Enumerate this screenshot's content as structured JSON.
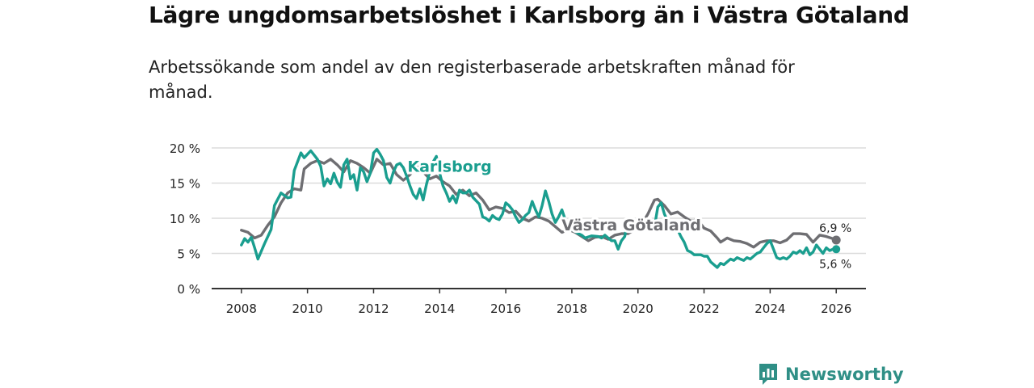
{
  "title": "Lägre ungdomsarbetslöshet i Karlsborg än i Västra Götaland",
  "subtitle": "Arbetssökande som andel av den registerbaserade arbetskraften månad för månad.",
  "brand": {
    "name": "Newsworthy"
  },
  "colors": {
    "karlsborg": "#1a9e8f",
    "vg": "#6e6e72",
    "grid": "#dcdcdc",
    "axis": "#333333"
  },
  "chart_data": {
    "type": "line",
    "title": "Lägre ungdomsarbetslöshet i Karlsborg än i Västra Götaland",
    "xlabel": "",
    "ylabel": "",
    "xlim": [
      2007.1,
      2026.9
    ],
    "ylim": [
      0,
      20
    ],
    "x_ticks": [
      2008,
      2010,
      2012,
      2014,
      2016,
      2018,
      2020,
      2022,
      2024,
      2026
    ],
    "x_tick_labels": [
      "2008",
      "2010",
      "2012",
      "2014",
      "2016",
      "2018",
      "2020",
      "2022",
      "2024",
      "2026"
    ],
    "y_ticks": [
      0,
      5,
      10,
      15,
      20
    ],
    "y_tick_labels": [
      "0 %",
      "5 %",
      "10 %",
      "15 %",
      "20 %"
    ],
    "grid": true,
    "series": [
      {
        "name": "Västra Götaland",
        "color": "#6e6e72",
        "end_label": "6,9 %",
        "points": [
          [
            2008.0,
            8.3
          ],
          [
            2008.2,
            8.0
          ],
          [
            2008.4,
            7.2
          ],
          [
            2008.6,
            7.6
          ],
          [
            2008.8,
            9.0
          ],
          [
            2009.0,
            10.2
          ],
          [
            2009.2,
            12.2
          ],
          [
            2009.4,
            13.6
          ],
          [
            2009.6,
            14.2
          ],
          [
            2009.8,
            14.0
          ],
          [
            2009.9,
            17.0
          ],
          [
            2010.1,
            17.8
          ],
          [
            2010.3,
            18.2
          ],
          [
            2010.5,
            17.8
          ],
          [
            2010.7,
            18.4
          ],
          [
            2010.9,
            17.6
          ],
          [
            2011.1,
            16.6
          ],
          [
            2011.3,
            18.2
          ],
          [
            2011.5,
            17.8
          ],
          [
            2011.7,
            17.2
          ],
          [
            2011.9,
            16.4
          ],
          [
            2012.1,
            18.4
          ],
          [
            2012.3,
            17.6
          ],
          [
            2012.5,
            17.8
          ],
          [
            2012.7,
            16.2
          ],
          [
            2012.9,
            15.4
          ],
          [
            2013.1,
            16.2
          ],
          [
            2013.3,
            17.4
          ],
          [
            2013.5,
            16.6
          ],
          [
            2013.7,
            15.6
          ],
          [
            2013.9,
            16.0
          ],
          [
            2014.1,
            15.2
          ],
          [
            2014.3,
            14.6
          ],
          [
            2014.5,
            13.4
          ],
          [
            2014.7,
            14.0
          ],
          [
            2014.9,
            13.2
          ],
          [
            2015.1,
            13.6
          ],
          [
            2015.3,
            12.6
          ],
          [
            2015.5,
            11.2
          ],
          [
            2015.7,
            11.6
          ],
          [
            2015.9,
            11.4
          ],
          [
            2016.1,
            10.8
          ],
          [
            2016.3,
            11.0
          ],
          [
            2016.5,
            10.0
          ],
          [
            2016.7,
            9.6
          ],
          [
            2016.9,
            10.2
          ],
          [
            2017.1,
            10.0
          ],
          [
            2017.3,
            9.6
          ],
          [
            2017.5,
            8.8
          ],
          [
            2017.7,
            8.0
          ],
          [
            2017.9,
            8.4
          ],
          [
            2018.1,
            8.0
          ],
          [
            2018.3,
            7.4
          ],
          [
            2018.5,
            6.8
          ],
          [
            2018.7,
            7.3
          ],
          [
            2018.9,
            7.4
          ],
          [
            2019.1,
            7.0
          ],
          [
            2019.3,
            7.6
          ],
          [
            2019.5,
            7.8
          ],
          [
            2019.7,
            7.8
          ],
          [
            2019.9,
            8.4
          ],
          [
            2020.1,
            9.0
          ],
          [
            2020.3,
            10.6
          ],
          [
            2020.5,
            12.6
          ],
          [
            2020.6,
            12.7
          ],
          [
            2020.8,
            11.8
          ],
          [
            2021.0,
            10.6
          ],
          [
            2021.2,
            10.9
          ],
          [
            2021.4,
            10.2
          ],
          [
            2021.6,
            9.6
          ],
          [
            2021.8,
            9.8
          ],
          [
            2022.0,
            8.6
          ],
          [
            2022.2,
            8.2
          ],
          [
            2022.4,
            7.2
          ],
          [
            2022.5,
            6.6
          ],
          [
            2022.7,
            7.2
          ],
          [
            2022.9,
            6.8
          ],
          [
            2023.1,
            6.7
          ],
          [
            2023.3,
            6.4
          ],
          [
            2023.5,
            5.9
          ],
          [
            2023.7,
            6.6
          ],
          [
            2023.9,
            6.8
          ],
          [
            2024.1,
            6.8
          ],
          [
            2024.3,
            6.5
          ],
          [
            2024.5,
            6.9
          ],
          [
            2024.7,
            7.8
          ],
          [
            2024.9,
            7.8
          ],
          [
            2025.1,
            7.7
          ],
          [
            2025.3,
            6.6
          ],
          [
            2025.5,
            7.6
          ],
          [
            2025.7,
            7.4
          ],
          [
            2025.9,
            7.1
          ],
          [
            2026.0,
            6.9
          ]
        ]
      },
      {
        "name": "Karlsborg",
        "color": "#1a9e8f",
        "end_label": "5,6 %",
        "points": [
          [
            2008.0,
            6.2
          ],
          [
            2008.1,
            7.1
          ],
          [
            2008.2,
            6.6
          ],
          [
            2008.3,
            7.3
          ],
          [
            2008.4,
            5.8
          ],
          [
            2008.5,
            4.2
          ],
          [
            2008.7,
            6.4
          ],
          [
            2008.9,
            8.4
          ],
          [
            2009.0,
            11.8
          ],
          [
            2009.2,
            13.6
          ],
          [
            2009.4,
            12.9
          ],
          [
            2009.5,
            13.0
          ],
          [
            2009.6,
            16.8
          ],
          [
            2009.8,
            19.3
          ],
          [
            2009.9,
            18.6
          ],
          [
            2010.1,
            19.6
          ],
          [
            2010.2,
            19.0
          ],
          [
            2010.3,
            18.4
          ],
          [
            2010.4,
            17.4
          ],
          [
            2010.5,
            14.6
          ],
          [
            2010.6,
            15.6
          ],
          [
            2010.7,
            14.9
          ],
          [
            2010.8,
            16.4
          ],
          [
            2010.9,
            15.1
          ],
          [
            2011.0,
            14.4
          ],
          [
            2011.1,
            17.6
          ],
          [
            2011.2,
            18.4
          ],
          [
            2011.3,
            15.6
          ],
          [
            2011.4,
            16.2
          ],
          [
            2011.5,
            14.0
          ],
          [
            2011.6,
            17.2
          ],
          [
            2011.7,
            16.6
          ],
          [
            2011.8,
            15.2
          ],
          [
            2011.9,
            16.4
          ],
          [
            2012.0,
            19.3
          ],
          [
            2012.1,
            19.8
          ],
          [
            2012.2,
            19.1
          ],
          [
            2012.3,
            18.2
          ],
          [
            2012.4,
            15.8
          ],
          [
            2012.5,
            15.0
          ],
          [
            2012.6,
            16.6
          ],
          [
            2012.7,
            17.6
          ],
          [
            2012.8,
            17.8
          ],
          [
            2012.9,
            17.2
          ],
          [
            2013.0,
            16.0
          ],
          [
            2013.1,
            14.6
          ],
          [
            2013.2,
            13.4
          ],
          [
            2013.3,
            12.8
          ],
          [
            2013.4,
            14.2
          ],
          [
            2013.5,
            12.6
          ],
          [
            2013.6,
            14.8
          ],
          [
            2013.7,
            16.6
          ],
          [
            2013.8,
            18.0
          ],
          [
            2013.9,
            18.8
          ],
          [
            2014.0,
            16.4
          ],
          [
            2014.1,
            14.6
          ],
          [
            2014.2,
            13.6
          ],
          [
            2014.3,
            12.4
          ],
          [
            2014.4,
            13.2
          ],
          [
            2014.5,
            12.2
          ],
          [
            2014.6,
            14.0
          ],
          [
            2014.7,
            13.6
          ],
          [
            2014.8,
            13.6
          ],
          [
            2014.9,
            14.0
          ],
          [
            2015.0,
            13.0
          ],
          [
            2015.2,
            12.0
          ],
          [
            2015.3,
            10.2
          ],
          [
            2015.4,
            10.0
          ],
          [
            2015.5,
            9.6
          ],
          [
            2015.6,
            10.4
          ],
          [
            2015.7,
            10.0
          ],
          [
            2015.8,
            9.8
          ],
          [
            2015.9,
            10.6
          ],
          [
            2016.0,
            12.2
          ],
          [
            2016.1,
            11.8
          ],
          [
            2016.2,
            11.2
          ],
          [
            2016.3,
            10.2
          ],
          [
            2016.4,
            9.4
          ],
          [
            2016.5,
            9.8
          ],
          [
            2016.6,
            10.4
          ],
          [
            2016.7,
            10.8
          ],
          [
            2016.8,
            12.4
          ],
          [
            2016.9,
            11.2
          ],
          [
            2017.0,
            10.2
          ],
          [
            2017.1,
            11.8
          ],
          [
            2017.2,
            13.9
          ],
          [
            2017.3,
            12.4
          ],
          [
            2017.4,
            10.6
          ],
          [
            2017.5,
            9.4
          ],
          [
            2017.6,
            10.2
          ],
          [
            2017.7,
            11.2
          ],
          [
            2017.8,
            9.8
          ],
          [
            2017.9,
            8.8
          ],
          [
            2018.0,
            8.4
          ],
          [
            2018.2,
            7.8
          ],
          [
            2018.3,
            7.6
          ],
          [
            2018.4,
            7.2
          ],
          [
            2018.6,
            7.5
          ],
          [
            2018.8,
            7.4
          ],
          [
            2018.9,
            7.2
          ],
          [
            2019.0,
            7.6
          ],
          [
            2019.1,
            7.2
          ],
          [
            2019.2,
            6.8
          ],
          [
            2019.3,
            6.8
          ],
          [
            2019.4,
            5.6
          ],
          [
            2019.5,
            6.8
          ],
          [
            2019.6,
            7.4
          ],
          [
            2019.7,
            9.8
          ],
          [
            2019.8,
            9.4
          ],
          [
            2019.9,
            9.6
          ],
          [
            2020.0,
            9.8
          ],
          [
            2020.1,
            9.4
          ],
          [
            2020.2,
            9.8
          ],
          [
            2020.3,
            9.2
          ],
          [
            2020.4,
            9.6
          ],
          [
            2020.5,
            8.8
          ],
          [
            2020.6,
            11.6
          ],
          [
            2020.7,
            12.2
          ],
          [
            2020.8,
            10.6
          ],
          [
            2020.9,
            9.6
          ],
          [
            2021.0,
            9.2
          ],
          [
            2021.1,
            9.4
          ],
          [
            2021.2,
            8.4
          ],
          [
            2021.3,
            7.4
          ],
          [
            2021.4,
            6.6
          ],
          [
            2021.5,
            5.4
          ],
          [
            2021.6,
            5.2
          ],
          [
            2021.7,
            4.8
          ],
          [
            2021.8,
            4.8
          ],
          [
            2021.9,
            4.8
          ],
          [
            2022.0,
            4.6
          ],
          [
            2022.1,
            4.6
          ],
          [
            2022.2,
            3.8
          ],
          [
            2022.3,
            3.4
          ],
          [
            2022.4,
            3.0
          ],
          [
            2022.5,
            3.6
          ],
          [
            2022.6,
            3.4
          ],
          [
            2022.7,
            3.8
          ],
          [
            2022.8,
            4.2
          ],
          [
            2022.9,
            4.0
          ],
          [
            2023.0,
            4.4
          ],
          [
            2023.1,
            4.2
          ],
          [
            2023.2,
            4.0
          ],
          [
            2023.3,
            4.4
          ],
          [
            2023.4,
            4.2
          ],
          [
            2023.5,
            4.6
          ],
          [
            2023.6,
            5.0
          ],
          [
            2023.7,
            5.2
          ],
          [
            2023.8,
            5.8
          ],
          [
            2023.9,
            6.4
          ],
          [
            2024.0,
            6.8
          ],
          [
            2024.1,
            5.6
          ],
          [
            2024.2,
            4.4
          ],
          [
            2024.3,
            4.2
          ],
          [
            2024.4,
            4.4
          ],
          [
            2024.5,
            4.2
          ],
          [
            2024.6,
            4.6
          ],
          [
            2024.7,
            5.2
          ],
          [
            2024.8,
            5.0
          ],
          [
            2024.9,
            5.4
          ],
          [
            2025.0,
            5.0
          ],
          [
            2025.1,
            5.8
          ],
          [
            2025.2,
            4.8
          ],
          [
            2025.3,
            5.2
          ],
          [
            2025.4,
            6.2
          ],
          [
            2025.5,
            5.6
          ],
          [
            2025.6,
            5.0
          ],
          [
            2025.7,
            5.8
          ],
          [
            2025.8,
            5.4
          ],
          [
            2025.9,
            5.6
          ],
          [
            2026.0,
            5.6
          ]
        ]
      }
    ],
    "annotations": [
      {
        "text": "Karlsborg",
        "series": "Karlsborg",
        "at_x": 2014.3,
        "at_y": 16.6
      },
      {
        "text": "Västra Götaland",
        "series": "Västra Götaland",
        "at_x": 2019.8,
        "at_y": 8.3
      }
    ]
  }
}
